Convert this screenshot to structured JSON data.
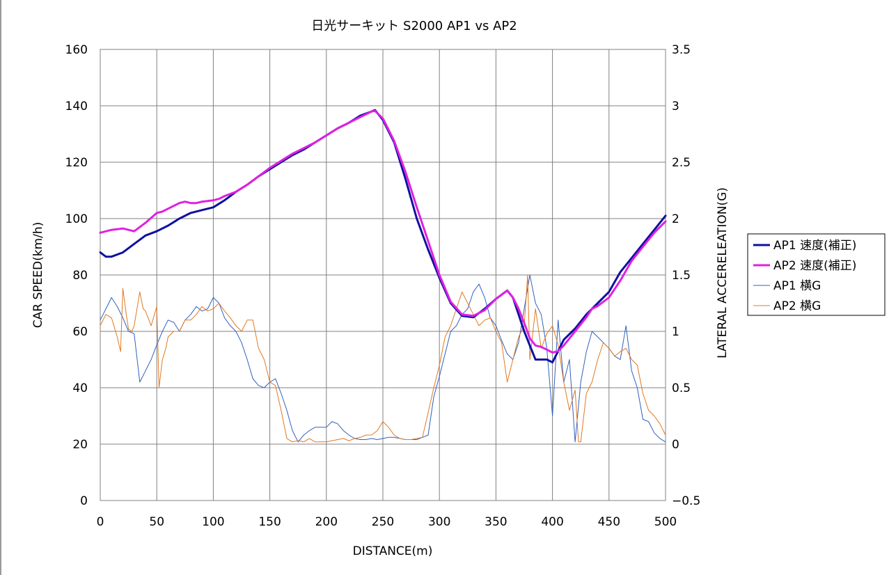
{
  "chart_data": {
    "type": "line",
    "title": "日光サーキット S2000 AP1 vs AP2",
    "xlabel": "DISTANCE(m)",
    "ylabel": "CAR SPEED(km/h)",
    "y2label": "LATERAL ACCERELEATION(G)",
    "xlim": [
      0,
      500
    ],
    "ylim": [
      0,
      160
    ],
    "y2lim": [
      -0.5,
      3.5
    ],
    "x_ticks": [
      "0",
      "50",
      "100",
      "150",
      "200",
      "250",
      "300",
      "350",
      "400",
      "450",
      "500"
    ],
    "y_ticks": [
      "0",
      "20",
      "40",
      "60",
      "80",
      "100",
      "120",
      "140",
      "160"
    ],
    "y2_ticks": [
      "−0.5",
      "0",
      "0.5",
      "1",
      "1.5",
      "2",
      "2.5",
      "3",
      "3.5"
    ],
    "grid": "horizontal and vertical",
    "legend_position": "right",
    "series": [
      {
        "name": "AP1 速度(補正)",
        "axis": "left",
        "color": "#1010a0",
        "width": 3,
        "x": [
          0,
          5,
          10,
          20,
          30,
          40,
          50,
          60,
          70,
          80,
          90,
          100,
          110,
          120,
          130,
          140,
          150,
          160,
          170,
          180,
          190,
          200,
          210,
          220,
          230,
          240,
          243,
          250,
          260,
          270,
          280,
          290,
          300,
          310,
          320,
          330,
          340,
          350,
          360,
          365,
          370,
          375,
          380,
          385,
          390,
          395,
          400,
          405,
          410,
          420,
          430,
          440,
          450,
          460,
          470,
          480,
          490,
          500
        ],
        "y": [
          88,
          86.5,
          86.5,
          88,
          91,
          94,
          95.5,
          97.5,
          100,
          102,
          103,
          104,
          106.5,
          109.5,
          112,
          115,
          117.5,
          120,
          122.5,
          124.5,
          127,
          129.5,
          132,
          134,
          136.5,
          138,
          138.5,
          135,
          127,
          114,
          100,
          89,
          79,
          70,
          65.5,
          65,
          68,
          71.5,
          74.5,
          72,
          66,
          60,
          55,
          50,
          50,
          50,
          49,
          53,
          57,
          61,
          66,
          70,
          74,
          81,
          86,
          91,
          96,
          101
        ]
      },
      {
        "name": "AP2 速度(補正)",
        "axis": "left",
        "color": "#e020e0",
        "width": 3,
        "x": [
          0,
          10,
          20,
          25,
          30,
          35,
          40,
          50,
          55,
          60,
          70,
          75,
          80,
          85,
          90,
          100,
          105,
          110,
          120,
          130,
          140,
          150,
          160,
          170,
          180,
          190,
          200,
          210,
          220,
          230,
          240,
          243,
          250,
          260,
          270,
          280,
          290,
          300,
          310,
          320,
          330,
          340,
          350,
          360,
          365,
          370,
          375,
          380,
          385,
          390,
          395,
          400,
          405,
          410,
          420,
          430,
          435,
          440,
          450,
          460,
          470,
          480,
          490,
          500
        ],
        "y": [
          95,
          96,
          96.5,
          96,
          95.5,
          97,
          98.5,
          102,
          102.5,
          103.5,
          105.5,
          106,
          105.5,
          105.5,
          106,
          106.5,
          107,
          108,
          109.5,
          112,
          115,
          118,
          120.5,
          123,
          125,
          127,
          129.5,
          132,
          134,
          136,
          138,
          138.2,
          135.5,
          127.5,
          116.5,
          104,
          92,
          80,
          70.5,
          66,
          65.5,
          67.5,
          71.5,
          74.5,
          72,
          68,
          63,
          57.5,
          55,
          54.5,
          53.5,
          52.5,
          53,
          55,
          60,
          65,
          68,
          69,
          72,
          78,
          85,
          90,
          95,
          99
        ]
      },
      {
        "name": "AP1 横G",
        "axis": "right",
        "color": "#3060c0",
        "width": 1,
        "x": [
          0,
          5,
          10,
          15,
          20,
          25,
          30,
          35,
          40,
          45,
          50,
          55,
          60,
          65,
          70,
          75,
          80,
          85,
          90,
          95,
          100,
          105,
          110,
          115,
          120,
          125,
          130,
          135,
          140,
          145,
          150,
          155,
          160,
          165,
          170,
          175,
          180,
          185,
          190,
          195,
          200,
          205,
          210,
          215,
          220,
          225,
          230,
          235,
          240,
          245,
          250,
          255,
          260,
          265,
          270,
          275,
          280,
          285,
          290,
          295,
          300,
          305,
          310,
          315,
          320,
          325,
          330,
          335,
          340,
          345,
          350,
          355,
          360,
          365,
          370,
          375,
          380,
          385,
          390,
          395,
          400,
          405,
          410,
          415,
          420,
          425,
          430,
          435,
          440,
          445,
          450,
          455,
          460,
          465,
          470,
          475,
          480,
          485,
          490,
          495,
          500
        ],
        "y": [
          1.1,
          1.2,
          1.3,
          1.22,
          1.12,
          1.0,
          0.98,
          0.55,
          0.65,
          0.75,
          0.88,
          1.0,
          1.1,
          1.08,
          1.0,
          1.1,
          1.15,
          1.22,
          1.18,
          1.2,
          1.3,
          1.25,
          1.12,
          1.05,
          1.0,
          0.9,
          0.75,
          0.58,
          0.52,
          0.5,
          0.55,
          0.58,
          0.45,
          0.3,
          0.12,
          0.02,
          0.08,
          0.12,
          0.15,
          0.15,
          0.15,
          0.2,
          0.18,
          0.12,
          0.08,
          0.05,
          0.04,
          0.04,
          0.05,
          0.04,
          0.05,
          0.06,
          0.06,
          0.05,
          0.04,
          0.04,
          0.04,
          0.06,
          0.08,
          0.42,
          0.6,
          0.8,
          1.0,
          1.05,
          1.15,
          1.2,
          1.35,
          1.42,
          1.3,
          1.12,
          1.05,
          0.92,
          0.8,
          0.75,
          0.9,
          1.2,
          1.5,
          1.25,
          1.15,
          0.85,
          0.25,
          1.1,
          0.55,
          0.75,
          0.02,
          0.55,
          0.82,
          1.0,
          0.95,
          0.9,
          0.85,
          0.78,
          0.75,
          1.05,
          0.65,
          0.5,
          0.22,
          0.2,
          0.1,
          0.05,
          0.02
        ]
      },
      {
        "name": "AP2 横G",
        "axis": "right",
        "color": "#e07820",
        "width": 1,
        "x": [
          0,
          5,
          10,
          15,
          18,
          20,
          23,
          25,
          28,
          30,
          35,
          38,
          40,
          45,
          50,
          52,
          55,
          58,
          60,
          65,
          70,
          75,
          80,
          85,
          90,
          95,
          100,
          105,
          110,
          115,
          120,
          125,
          130,
          135,
          140,
          145,
          150,
          155,
          160,
          165,
          170,
          175,
          180,
          185,
          190,
          195,
          200,
          205,
          210,
          215,
          220,
          225,
          230,
          235,
          240,
          245,
          250,
          255,
          260,
          265,
          270,
          275,
          280,
          285,
          290,
          295,
          300,
          305,
          310,
          315,
          320,
          325,
          330,
          335,
          340,
          345,
          350,
          355,
          360,
          365,
          370,
          375,
          378,
          380,
          385,
          390,
          395,
          400,
          405,
          410,
          415,
          420,
          423,
          425,
          428,
          430,
          435,
          440,
          445,
          450,
          455,
          460,
          465,
          470,
          475,
          480,
          485,
          490,
          495,
          500
        ],
        "y": [
          1.05,
          1.15,
          1.12,
          0.95,
          0.82,
          1.38,
          1.15,
          1.02,
          1.0,
          1.05,
          1.35,
          1.2,
          1.18,
          1.05,
          1.22,
          0.5,
          0.75,
          0.85,
          0.95,
          1.0,
          1.0,
          1.1,
          1.1,
          1.15,
          1.22,
          1.18,
          1.2,
          1.25,
          1.18,
          1.12,
          1.05,
          1.0,
          1.1,
          1.1,
          0.85,
          0.75,
          0.55,
          0.52,
          0.3,
          0.05,
          0.02,
          0.03,
          0.02,
          0.05,
          0.02,
          0.02,
          0.02,
          0.03,
          0.04,
          0.05,
          0.03,
          0.05,
          0.06,
          0.08,
          0.08,
          0.12,
          0.2,
          0.15,
          0.08,
          0.05,
          0.04,
          0.04,
          0.05,
          0.06,
          0.28,
          0.5,
          0.7,
          0.95,
          1.05,
          1.2,
          1.35,
          1.25,
          1.15,
          1.05,
          1.1,
          1.12,
          1.0,
          0.9,
          0.55,
          0.75,
          0.95,
          1.05,
          1.5,
          0.75,
          1.2,
          0.85,
          0.98,
          1.05,
          0.88,
          0.55,
          0.3,
          0.48,
          0.02,
          0.02,
          0.28,
          0.45,
          0.55,
          0.75,
          0.9,
          0.85,
          0.78,
          0.82,
          0.85,
          0.75,
          0.7,
          0.45,
          0.3,
          0.25,
          0.18,
          0.08
        ]
      }
    ]
  }
}
